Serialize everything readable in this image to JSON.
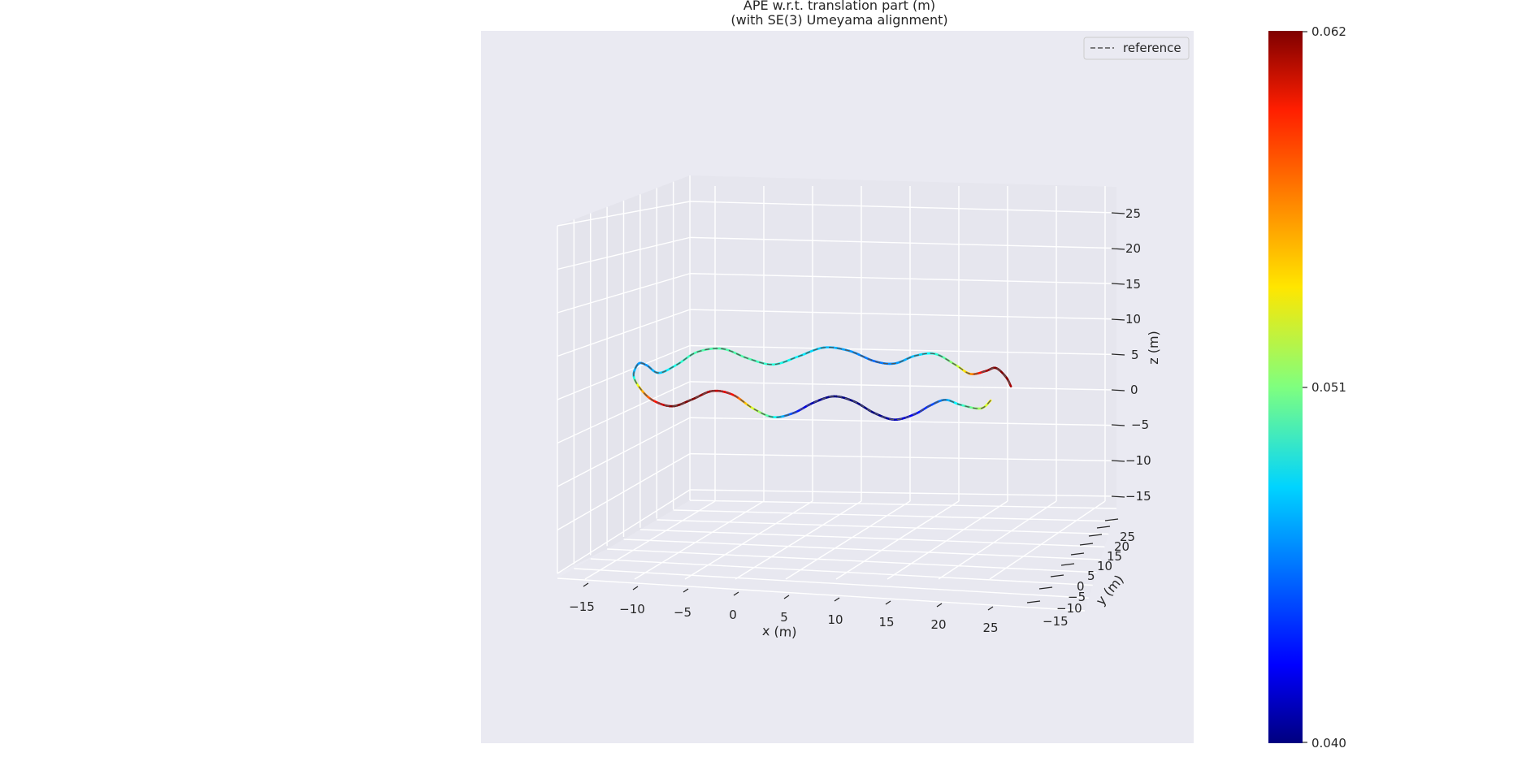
{
  "chart_data": {
    "type": "line",
    "projection": "3d",
    "title": [
      "APE w.r.t. translation part (m)",
      "(with SE(3) Umeyama alignment)"
    ],
    "xlabel": "x (m)",
    "ylabel": "y (m)",
    "zlabel": "z (m)",
    "xticks": [
      "−15",
      "−10",
      "−5",
      "0",
      "5",
      "10",
      "15",
      "20",
      "25"
    ],
    "yticks": [
      "−15",
      "−10",
      "−5",
      "0",
      "5",
      "10",
      "15",
      "20",
      "25"
    ],
    "zticks": [
      "−15",
      "−10",
      "−5",
      "0",
      "5",
      "10",
      "15",
      "20",
      "25"
    ],
    "xlim": [
      -18,
      28
    ],
    "ylim": [
      -18,
      28
    ],
    "zlim": [
      -18,
      28
    ],
    "grid": true,
    "legend": {
      "placement": "upper-right",
      "entries": [
        {
          "label": "reference",
          "style": "dashed",
          "color": "#555555"
        }
      ]
    },
    "colorbar": {
      "colormap": "jet",
      "min": 0.04,
      "max": 0.062,
      "tick_labels": [
        "0.040",
        "0.051",
        "0.062"
      ],
      "tick_values": [
        0.04,
        0.051,
        0.062
      ]
    },
    "trajectory": {
      "description_note": "",
      "points": [
        {
          "x": 25.0,
          "y": 0,
          "z": 0.2,
          "ape": 0.054
        },
        {
          "x": 24.0,
          "y": 0,
          "z": -1.0,
          "ape": 0.052
        },
        {
          "x": 22.0,
          "y": 0,
          "z": -0.6,
          "ape": 0.049
        },
        {
          "x": 20.5,
          "y": 0,
          "z": 0.0,
          "ape": 0.046
        },
        {
          "x": 19.0,
          "y": 0,
          "z": -0.9,
          "ape": 0.044
        },
        {
          "x": 17.5,
          "y": 0,
          "z": -2.2,
          "ape": 0.043
        },
        {
          "x": 15.5,
          "y": 0,
          "z": -3.1,
          "ape": 0.041
        },
        {
          "x": 13.5,
          "y": 0,
          "z": -2.3,
          "ape": 0.04
        },
        {
          "x": 11.5,
          "y": 0,
          "z": -0.8,
          "ape": 0.04
        },
        {
          "x": 9.5,
          "y": 0,
          "z": -0.2,
          "ape": 0.04
        },
        {
          "x": 7.5,
          "y": 0,
          "z": -1.2,
          "ape": 0.041
        },
        {
          "x": 5.5,
          "y": 0,
          "z": -2.8,
          "ape": 0.044
        },
        {
          "x": 3.5,
          "y": 0,
          "z": -3.5,
          "ape": 0.049
        },
        {
          "x": 1.5,
          "y": 0,
          "z": -2.4,
          "ape": 0.053
        },
        {
          "x": -0.5,
          "y": 0,
          "z": -0.6,
          "ape": 0.059
        },
        {
          "x": -2.5,
          "y": 0,
          "z": -0.2,
          "ape": 0.061
        },
        {
          "x": -4.5,
          "y": 0,
          "z": -1.5,
          "ape": 0.062
        },
        {
          "x": -6.5,
          "y": 0,
          "z": -2.6,
          "ape": 0.062
        },
        {
          "x": -8.5,
          "y": 0,
          "z": -1.8,
          "ape": 0.058
        },
        {
          "x": -9.8,
          "y": 0,
          "z": 0.0,
          "ape": 0.054
        },
        {
          "x": -10.3,
          "y": 0,
          "z": 1.6,
          "ape": 0.047
        },
        {
          "x": -9.8,
          "y": 0,
          "z": 3.2,
          "ape": 0.046
        },
        {
          "x": -9.0,
          "y": 0,
          "z": 3.0,
          "ape": 0.046
        },
        {
          "x": -7.8,
          "y": 0,
          "z": 2.0,
          "ape": 0.047
        },
        {
          "x": -6.0,
          "y": 0,
          "z": 3.3,
          "ape": 0.049
        },
        {
          "x": -4.0,
          "y": 0,
          "z": 5.2,
          "ape": 0.05
        },
        {
          "x": -1.5,
          "y": 0,
          "z": 5.8,
          "ape": 0.05
        },
        {
          "x": 1.0,
          "y": 0,
          "z": 4.6,
          "ape": 0.05
        },
        {
          "x": 3.5,
          "y": 0,
          "z": 3.9,
          "ape": 0.049
        },
        {
          "x": 6.0,
          "y": 0,
          "z": 5.2,
          "ape": 0.048
        },
        {
          "x": 8.5,
          "y": 0,
          "z": 6.6,
          "ape": 0.047
        },
        {
          "x": 11.0,
          "y": 0,
          "z": 6.3,
          "ape": 0.046
        },
        {
          "x": 13.5,
          "y": 0,
          "z": 5.0,
          "ape": 0.045
        },
        {
          "x": 15.5,
          "y": 0,
          "z": 4.8,
          "ape": 0.046
        },
        {
          "x": 17.5,
          "y": 0,
          "z": 6.0,
          "ape": 0.047
        },
        {
          "x": 19.5,
          "y": 0,
          "z": 6.4,
          "ape": 0.049
        },
        {
          "x": 21.5,
          "y": 0,
          "z": 5.0,
          "ape": 0.052
        },
        {
          "x": 23.0,
          "y": 0,
          "z": 3.8,
          "ape": 0.056
        },
        {
          "x": 24.5,
          "y": 0,
          "z": 4.3,
          "ape": 0.061
        },
        {
          "x": 25.5,
          "y": 0,
          "z": 4.8,
          "ape": 0.062
        },
        {
          "x": 26.5,
          "y": 0,
          "z": 3.6,
          "ape": 0.062
        },
        {
          "x": 27.0,
          "y": 0,
          "z": 2.3,
          "ape": 0.061
        }
      ]
    }
  },
  "colors": {
    "pane": "#eaeaf2",
    "pane_side": "#e5e5ec",
    "grid": "#ffffff",
    "reference_line": "#555555"
  }
}
